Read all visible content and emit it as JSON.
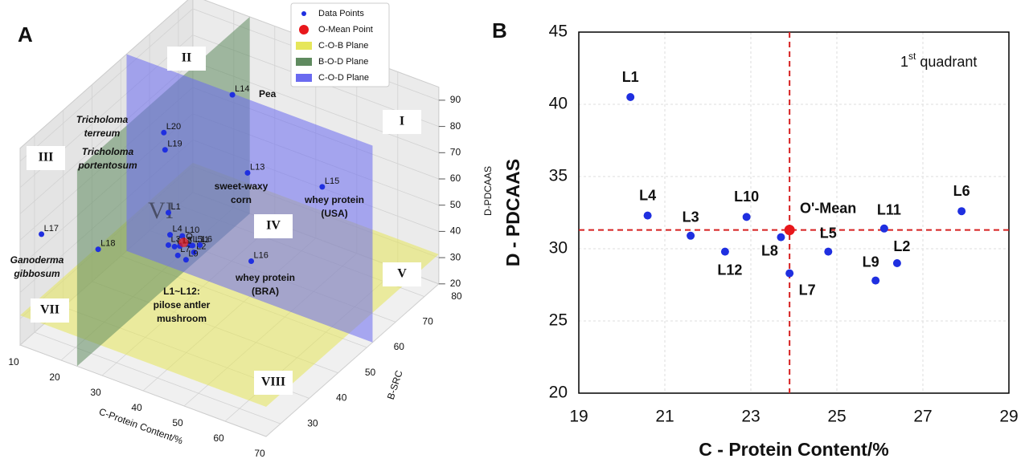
{
  "panel_labels": [
    "A",
    "B"
  ],
  "chart_data": [
    {
      "type": "scatter3d",
      "xlabel": "C-Protein Content/%",
      "ylabel": "B-SRC",
      "zlabel": "D-PDCAAS",
      "xlim": [
        10,
        70
      ],
      "ylim": [
        25,
        85
      ],
      "zlim": [
        20,
        95
      ],
      "xticks": [
        10,
        20,
        30,
        40,
        50,
        60,
        70
      ],
      "yticks": [
        30,
        40,
        50,
        60,
        70,
        80
      ],
      "zticks": [
        20,
        30,
        40,
        50,
        60,
        70,
        80,
        90
      ],
      "series": [
        {
          "name": "Data Points",
          "color": "#1f2fe0",
          "labels": [
            "L1",
            "L2",
            "L3",
            "L4",
            "L5",
            "L6",
            "L7",
            "L8",
            "L9",
            "L10",
            "L11",
            "L12",
            "L13",
            "L14",
            "L15",
            "L16",
            "L17",
            "L18",
            "L19",
            "L20"
          ],
          "x": [
            20.2,
            26.4,
            21.6,
            20.6,
            24.8,
            27.9,
            23.9,
            23.7,
            25.9,
            22.9,
            26.1,
            22.4,
            36,
            33,
            50,
            39,
            11,
            15,
            25,
            24
          ],
          "y": [
            62,
            62,
            60,
            62,
            63,
            62,
            60,
            61,
            60,
            63,
            62,
            61,
            67,
            66,
            73,
            64,
            31,
            45,
            54,
            55
          ],
          "z": [
            40.5,
            29.0,
            30.9,
            32.3,
            29.8,
            32.6,
            28.3,
            30.8,
            27.8,
            32.2,
            31.4,
            29.8,
            60,
            89,
            57,
            31,
            57,
            40,
            75,
            80
          ]
        },
        {
          "name": "O-Mean Point",
          "color": "#e8171b",
          "labels": [
            "O"
          ],
          "x": [
            23.9
          ],
          "y": [
            62
          ],
          "z": [
            31.3
          ]
        }
      ],
      "planes": [
        {
          "name": "C-O-B Plane",
          "color": "#e6e65a"
        },
        {
          "name": "B-O-D Plane",
          "color": "#5f8a5f"
        },
        {
          "name": "C-O-D Plane",
          "color": "#6a6af0"
        }
      ],
      "regions": [
        "I",
        "II",
        "III",
        "IV",
        "V",
        "VI",
        "VII",
        "VIII"
      ],
      "annotations": [
        [
          "Pea"
        ],
        [
          "sweet-waxy",
          "corn"
        ],
        [
          "whey protein",
          "(USA)"
        ],
        [
          "whey protein",
          "(BRA)"
        ],
        [
          "Tricholoma",
          "terreum"
        ],
        [
          "Tricholoma",
          "portentosum"
        ],
        [
          "Ganoderma",
          "gibbosum"
        ],
        [
          "L1~L12:",
          "pilose antler",
          "mushroom"
        ]
      ]
    },
    {
      "type": "scatter",
      "xlabel": "C - Protein Content/%",
      "ylabel": "D - PDCAAS",
      "xlim": [
        19,
        29
      ],
      "ylim": [
        20,
        45
      ],
      "xticks": [
        19,
        21,
        23,
        25,
        27,
        29
      ],
      "yticks": [
        20,
        25,
        30,
        35,
        40,
        45
      ],
      "grid": true,
      "quadrant_label": {
        "number": "1",
        "suffix": "st",
        "text": "quadrant"
      },
      "series": [
        {
          "name": "Data Points",
          "color": "#1f2fe0",
          "labels": [
            "L1",
            "L2",
            "L3",
            "L4",
            "L5",
            "L6",
            "L7",
            "L8",
            "L9",
            "L10",
            "L11",
            "L12"
          ],
          "x": [
            20.2,
            26.4,
            21.6,
            20.6,
            24.8,
            27.9,
            23.9,
            23.7,
            25.9,
            22.9,
            26.1,
            22.4
          ],
          "y": [
            40.5,
            29.0,
            30.9,
            32.3,
            29.8,
            32.6,
            28.3,
            30.8,
            27.8,
            32.2,
            31.4,
            29.8
          ]
        },
        {
          "name": "O'-Mean",
          "color": "#e8171b",
          "labels": [
            "O'-Mean"
          ],
          "x": [
            23.9
          ],
          "y": [
            31.3
          ]
        }
      ]
    }
  ]
}
